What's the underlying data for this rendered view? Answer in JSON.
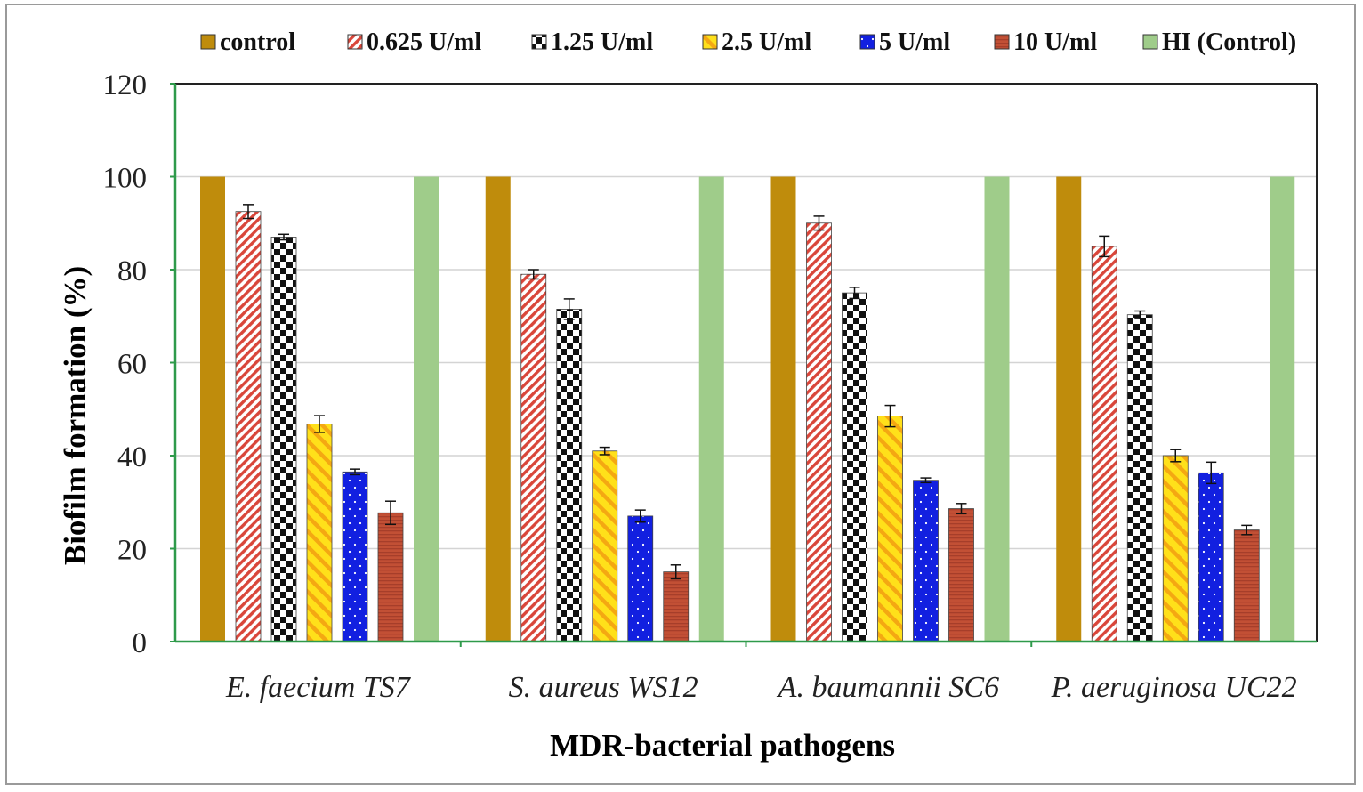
{
  "chart_data": {
    "type": "bar",
    "title": "",
    "xlabel": "MDR-bacterial pathogens",
    "ylabel": "Biofilm formation (%)",
    "ylim": [
      0,
      120
    ],
    "yticks": [
      0,
      20,
      40,
      60,
      80,
      100,
      120
    ],
    "grid": true,
    "legend_position": "top",
    "categories": [
      "E. faecium TS7",
      "S. aureus WS12",
      "A. baumannii SC6",
      "P. aeruginosa UC22"
    ],
    "series": [
      {
        "name": "control",
        "values": [
          100,
          100,
          100,
          100
        ],
        "errors": [
          0,
          0,
          0,
          0
        ],
        "color": "#bf8c0c",
        "pattern": "solid"
      },
      {
        "name": "0.625 U/ml",
        "values": [
          92.5,
          79,
          90,
          85
        ],
        "errors": [
          1.5,
          1.0,
          1.5,
          2.2
        ],
        "color": "#d9463a",
        "pattern": "diagonal"
      },
      {
        "name": "1.25 U/ml",
        "values": [
          87,
          71.5,
          75,
          70.3
        ],
        "errors": [
          0.6,
          2.2,
          1.2,
          0.8
        ],
        "color": "#111111",
        "pattern": "checker"
      },
      {
        "name": "2.5 U/ml",
        "values": [
          46.8,
          41,
          48.5,
          40
        ],
        "errors": [
          1.8,
          0.8,
          2.3,
          1.3
        ],
        "color": "#ffe01a",
        "pattern": "wide-diagonal"
      },
      {
        "name": "5 U/ml",
        "values": [
          36.5,
          27,
          34.7,
          36.3
        ],
        "errors": [
          0.6,
          1.3,
          0.5,
          2.3
        ],
        "color": "#1220e0",
        "pattern": "dots"
      },
      {
        "name": "10 U/ml",
        "values": [
          27.7,
          15,
          28.6,
          24
        ],
        "errors": [
          2.5,
          1.5,
          1.1,
          1.0
        ],
        "color": "#c25035",
        "pattern": "horizontal"
      },
      {
        "name": "HI (Control)",
        "values": [
          100,
          100,
          100,
          100
        ],
        "errors": [
          0,
          0,
          0,
          0
        ],
        "color": "#9fcc8a",
        "pattern": "solid"
      }
    ]
  }
}
